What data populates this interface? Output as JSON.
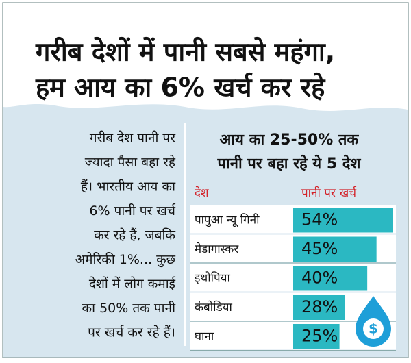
{
  "header": {
    "title_lines": [
      "गरीब देशों में पानी सबसे महंगा,",
      "हम आय का 6% खर्च कर रहे"
    ]
  },
  "body_text": {
    "lines": [
      "गरीब देश पानी पर",
      "ज्यादा पैसा बहा रहे",
      "हैं। भारतीय आय का",
      "6% पानी पर खर्च",
      "कर रहे हैं, जबकि",
      "अमेरिकी 1%... कुछ",
      "देशों में लोग कमाई",
      "का 50% तक पानी",
      "पर खर्च कर रहे हैं।"
    ]
  },
  "chart_data": {
    "type": "bar",
    "orientation": "horizontal",
    "title_lines": [
      "आय का 25-50% तक",
      "पानी पर बहा रहे ये 5 देश"
    ],
    "category_header": "देश",
    "value_header": "पानी पर खर्च",
    "categories": [
      "पापुआ न्यू गिनी",
      "मेडागास्कर",
      "इथोपिया",
      "कंबोडिया",
      "घाना"
    ],
    "values": [
      54,
      45,
      40,
      28,
      25
    ],
    "value_labels": [
      "54%",
      "45%",
      "40%",
      "28%",
      "25%"
    ],
    "color": "#2bb8c2"
  }
}
